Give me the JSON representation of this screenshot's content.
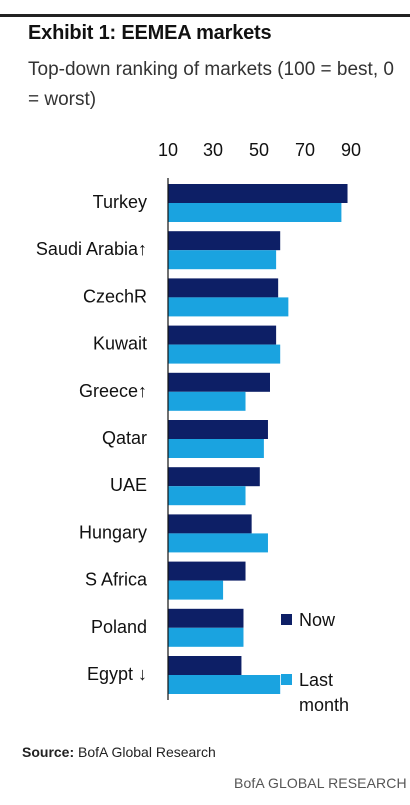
{
  "title": "Exhibit 1: EEMEA markets",
  "subtitle": "Top-down ranking of markets (100 = best, 0 = worst)",
  "source_label": "Source:",
  "source_text": "BofA Global Research",
  "brand": "BofA GLOBAL RESEARCH",
  "colors": {
    "now": "#0d1f66",
    "last_month": "#1aa3e0"
  },
  "chart_data": {
    "type": "bar",
    "orientation": "horizontal",
    "categories": [
      "Turkey",
      "Saudi Arabia↑",
      "CzechR",
      "Kuwait",
      "Greece↑",
      "Qatar",
      "UAE",
      "Hungary",
      "S Africa",
      "Poland",
      "Egypt ↓"
    ],
    "series": [
      {
        "name": "Now",
        "values": [
          88,
          55,
          54,
          53,
          50,
          49,
          45,
          41,
          38,
          37,
          36
        ]
      },
      {
        "name": "Last month",
        "values": [
          85,
          53,
          59,
          55,
          38,
          47,
          38,
          49,
          27,
          37,
          55
        ]
      }
    ],
    "xlim": [
      10,
      90
    ],
    "xticks": [
      10,
      30,
      50,
      70,
      90
    ],
    "xaxis_position": "top",
    "legend_position": "bottom-right",
    "grid": false
  }
}
